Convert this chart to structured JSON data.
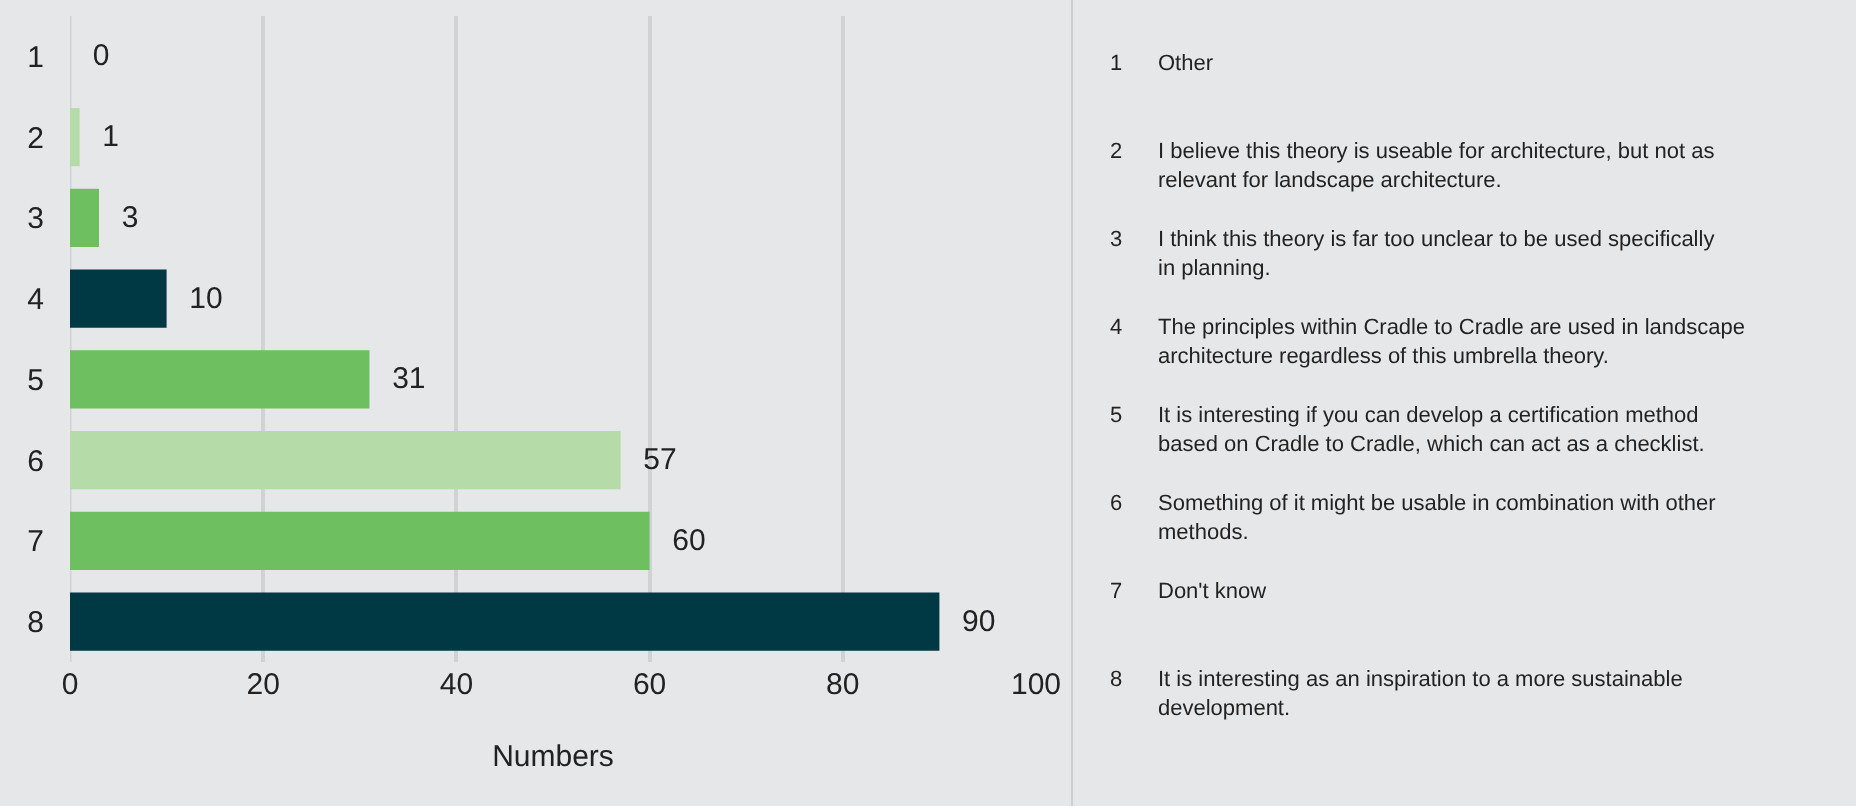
{
  "chart_data": {
    "type": "bar",
    "orientation": "horizontal",
    "xlabel": "Numbers",
    "categories": [
      "1",
      "2",
      "3",
      "4",
      "5",
      "6",
      "7",
      "8"
    ],
    "values": [
      0,
      1,
      3,
      10,
      31,
      57,
      60,
      90
    ],
    "colors": [
      "#b5dba8",
      "#b5dba8",
      "#6dbf5f",
      "#003843",
      "#6dbf5f",
      "#b5dba8",
      "#6dbf5f",
      "#003843"
    ],
    "xlim": [
      0,
      100
    ],
    "xticks": [
      0,
      20,
      40,
      60,
      80,
      100
    ],
    "grid": "x",
    "data_labels": true,
    "annotations": [
      "Other",
      "I believe this theory is useable for architecture, but not as relevant for landscape architecture.",
      "I think this theory is far too unclear to be used specifically in planning.",
      "The principles within Cradle to Cradle are used in landscape architecture regardless of this umbrella theory.",
      "It is interesting if you can develop a certification method based on Cradle to Cradle, which can act as a checklist.",
      "Something of it might be usable in combination with other methods.",
      "Don't know",
      "It is interesting as an inspiration to a more sustainable development."
    ]
  }
}
